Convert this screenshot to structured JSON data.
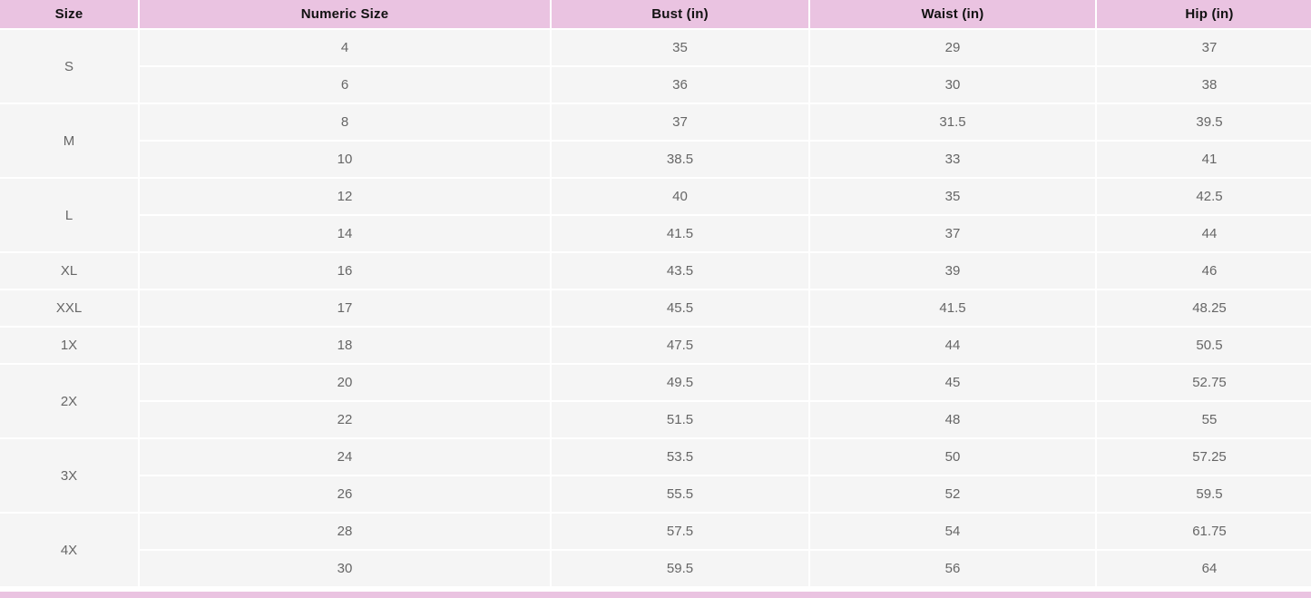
{
  "page": {
    "background_color": "#ffffff"
  },
  "size_chart": {
    "columns": [
      "Size",
      "Numeric Size",
      "Bust (in)",
      "Waist (in)",
      "Hip (in)"
    ],
    "groups": [
      {
        "size": "S",
        "rows": [
          {
            "numeric_size": "4",
            "bust": "35",
            "waist": "29",
            "hip": "37"
          },
          {
            "numeric_size": "6",
            "bust": "36",
            "waist": "30",
            "hip": "38"
          }
        ]
      },
      {
        "size": "M",
        "rows": [
          {
            "numeric_size": "8",
            "bust": "37",
            "waist": "31.5",
            "hip": "39.5"
          },
          {
            "numeric_size": "10",
            "bust": "38.5",
            "waist": "33",
            "hip": "41"
          }
        ]
      },
      {
        "size": "L",
        "rows": [
          {
            "numeric_size": "12",
            "bust": "40",
            "waist": "35",
            "hip": "42.5"
          },
          {
            "numeric_size": "14",
            "bust": "41.5",
            "waist": "37",
            "hip": "44"
          }
        ]
      },
      {
        "size": "XL",
        "rows": [
          {
            "numeric_size": "16",
            "bust": "43.5",
            "waist": "39",
            "hip": "46"
          }
        ]
      },
      {
        "size": "XXL",
        "rows": [
          {
            "numeric_size": "17",
            "bust": "45.5",
            "waist": "41.5",
            "hip": "48.25"
          }
        ]
      },
      {
        "size": "1X",
        "rows": [
          {
            "numeric_size": "18",
            "bust": "47.5",
            "waist": "44",
            "hip": "50.5"
          }
        ]
      },
      {
        "size": "2X",
        "rows": [
          {
            "numeric_size": "20",
            "bust": "49.5",
            "waist": "45",
            "hip": "52.75"
          },
          {
            "numeric_size": "22",
            "bust": "51.5",
            "waist": "48",
            "hip": "55"
          }
        ]
      },
      {
        "size": "3X",
        "rows": [
          {
            "numeric_size": "24",
            "bust": "53.5",
            "waist": "50",
            "hip": "57.25"
          },
          {
            "numeric_size": "26",
            "bust": "55.5",
            "waist": "52",
            "hip": "59.5"
          }
        ]
      },
      {
        "size": "4X",
        "rows": [
          {
            "numeric_size": "28",
            "bust": "57.5",
            "waist": "54",
            "hip": "61.75"
          },
          {
            "numeric_size": "30",
            "bust": "59.5",
            "waist": "56",
            "hip": "64"
          }
        ]
      }
    ],
    "colors": {
      "header_background": "#eac3e1",
      "header_text": "#111111",
      "cell_background": "#f5f5f5",
      "cell_text": "#666666",
      "grid_gap": "#ffffff"
    },
    "next_section_header_partially_visible": true
  }
}
